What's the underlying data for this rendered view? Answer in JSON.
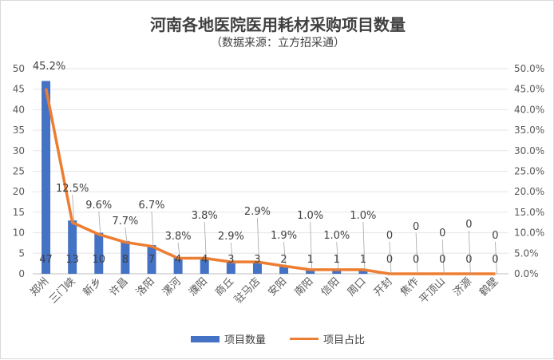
{
  "chart_data": {
    "type": "bar+line",
    "title": "河南各地医院医用耗材采购项目数量",
    "subtitle": "（数据来源：立方招采通）",
    "categories": [
      "郑州",
      "三门峡",
      "新乡",
      "许昌",
      "洛阳",
      "漯河",
      "濮阳",
      "商丘",
      "驻马店",
      "安阳",
      "南阳",
      "信阳",
      "周口",
      "开封",
      "焦作",
      "平顶山",
      "济源",
      "鹤壁"
    ],
    "series": [
      {
        "name": "项目数量",
        "type": "bar",
        "axis": "left",
        "color": "#4472c4",
        "values": [
          47,
          13,
          10,
          8,
          7,
          4,
          4,
          3,
          3,
          2,
          1,
          1,
          1,
          0,
          0,
          0,
          0,
          0
        ]
      },
      {
        "name": "项目占比",
        "type": "line",
        "axis": "right",
        "color": "#ed7d31",
        "values": [
          45.2,
          12.5,
          9.6,
          7.7,
          6.7,
          3.8,
          3.8,
          2.9,
          2.9,
          1.9,
          1.0,
          1.0,
          1.0,
          0,
          0,
          0,
          0,
          0
        ],
        "labels": [
          "45.2%",
          "12.5%",
          "9.6%",
          "7.7%",
          "6.7%",
          "3.8%",
          "3.8%",
          "2.9%",
          "2.9%",
          "1.9%",
          "1.0%",
          "1.0%",
          "1.0%",
          "0",
          "0",
          "0",
          "0",
          "0"
        ]
      }
    ],
    "ylim_left": [
      0,
      50
    ],
    "yticks_left": [
      "0",
      "5",
      "10",
      "15",
      "20",
      "25",
      "30",
      "35",
      "40",
      "45",
      "50"
    ],
    "ylim_right": [
      0,
      50
    ],
    "yticks_right": [
      "0.0%",
      "5.0%",
      "10.0%",
      "15.0%",
      "20.0%",
      "25.0%",
      "30.0%",
      "35.0%",
      "40.0%",
      "45.0%",
      "50.0%"
    ],
    "grid": true,
    "legend": "bottom"
  }
}
